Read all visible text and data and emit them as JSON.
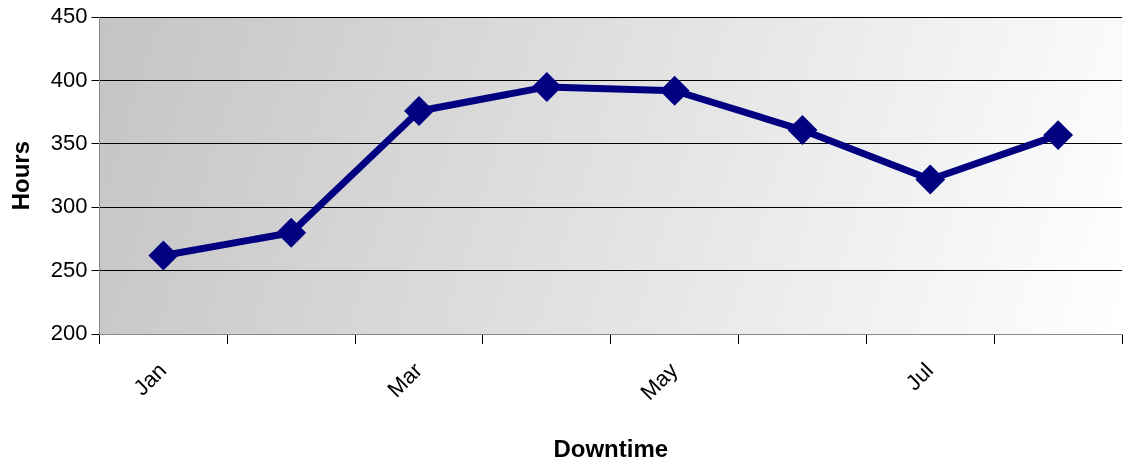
{
  "chart_data": {
    "type": "line",
    "xlabel": "Downtime",
    "ylabel": "Hours",
    "categories": [
      "Jan",
      null,
      "Mar",
      null,
      "May",
      null,
      "Jul",
      null
    ],
    "series": [
      {
        "color": "#000080",
        "values": [
          262,
          280,
          376,
          395,
          392,
          361,
          322,
          357
        ]
      }
    ],
    "ylim": [
      200,
      450
    ],
    "yticks": [
      200,
      250,
      300,
      350,
      400,
      450
    ],
    "grid": "y",
    "legend": false,
    "marker": "diamond",
    "line_style": "solid"
  }
}
